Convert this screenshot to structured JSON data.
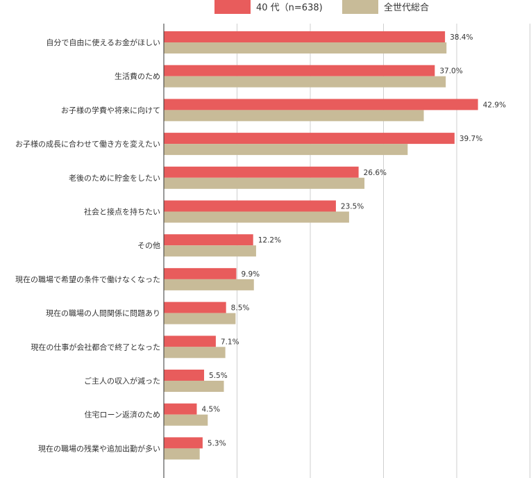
{
  "chart_data": {
    "type": "bar",
    "orientation": "horizontal",
    "categories": [
      "自分で自由に使えるお金がほしい",
      "生活費のため",
      "お子様の学費や将来に向けて",
      "お子様の成長に合わせて働き方を変えたい",
      "老後のために貯金をしたい",
      "社会と接点を持ちたい",
      "その他",
      "現在の職場で希望の条件で働けなくなった",
      "現在の職場の人間関係に問題あり",
      "現在の仕事が会社都合で終了となった",
      "ご主人の収入が減った",
      "住宅ローン返済のため",
      "現在の職場の残業や追加出勤が多い"
    ],
    "series": [
      {
        "name": "40 代（n=638)",
        "color": "#e85c5c",
        "values": [
          38.4,
          37.0,
          42.9,
          39.7,
          26.6,
          23.5,
          12.2,
          9.9,
          8.5,
          7.1,
          5.5,
          4.5,
          5.3
        ],
        "labels": [
          "38.4%",
          "37.0%",
          "42.9%",
          "39.7%",
          "26.6%",
          "23.5%",
          "12.2%",
          "9.9%",
          "8.5%",
          "7.1%",
          "5.5%",
          "4.5%",
          "5.3%"
        ]
      },
      {
        "name": "全世代総合",
        "color": "#c8bb98",
        "values": [
          38.6,
          38.5,
          35.5,
          33.3,
          27.4,
          25.3,
          12.6,
          12.3,
          9.8,
          8.4,
          8.2,
          6.0,
          4.9
        ]
      }
    ],
    "xlim": [
      0,
      50
    ],
    "grid": true,
    "legend": "top"
  }
}
